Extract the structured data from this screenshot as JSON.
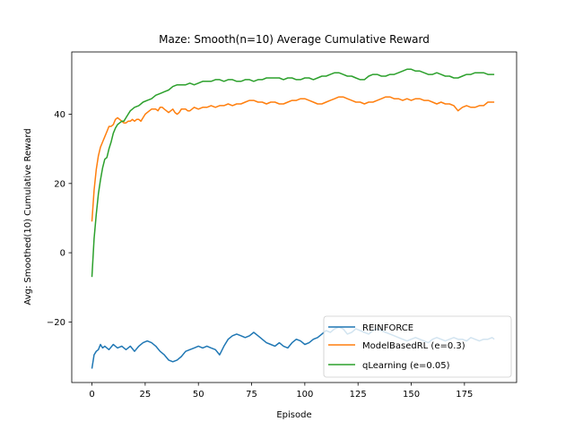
{
  "chart_data": {
    "type": "line",
    "title": "Maze: Smooth(n=10) Average Cumulative Reward",
    "xlabel": "Episode",
    "ylabel": "Avg: Smoothed(10) Cumulative Reward",
    "xlim": [
      -9.5,
      199.5
    ],
    "ylim": [
      -37.5,
      58
    ],
    "xticks": [
      0,
      25,
      50,
      75,
      100,
      125,
      150,
      175
    ],
    "yticks": [
      -20,
      0,
      20,
      40
    ],
    "yticklabels": [
      "−20",
      "0",
      "20",
      "40"
    ],
    "grid": false,
    "legend_position": "lower-right",
    "series": [
      {
        "name": "REINFORCE",
        "color": "#1f77b4",
        "points": [
          [
            0,
            -33.5
          ],
          [
            1,
            -29.5
          ],
          [
            2,
            -28.5
          ],
          [
            3,
            -28
          ],
          [
            4,
            -26.5
          ],
          [
            5,
            -27.5
          ],
          [
            6,
            -27
          ],
          [
            8,
            -28
          ],
          [
            10,
            -26.5
          ],
          [
            12,
            -27.5
          ],
          [
            14,
            -27
          ],
          [
            16,
            -28
          ],
          [
            18,
            -27
          ],
          [
            20,
            -28.5
          ],
          [
            22,
            -27
          ],
          [
            24,
            -26
          ],
          [
            26,
            -25.5
          ],
          [
            28,
            -26
          ],
          [
            30,
            -27
          ],
          [
            32,
            -28.5
          ],
          [
            34,
            -29.5
          ],
          [
            36,
            -31
          ],
          [
            38,
            -31.5
          ],
          [
            40,
            -31
          ],
          [
            42,
            -30
          ],
          [
            44,
            -28.5
          ],
          [
            46,
            -28
          ],
          [
            48,
            -27.5
          ],
          [
            50,
            -27
          ],
          [
            52,
            -27.5
          ],
          [
            54,
            -27
          ],
          [
            56,
            -27.5
          ],
          [
            58,
            -28
          ],
          [
            60,
            -29.5
          ],
          [
            62,
            -27
          ],
          [
            64,
            -25
          ],
          [
            66,
            -24
          ],
          [
            68,
            -23.5
          ],
          [
            70,
            -24
          ],
          [
            72,
            -24.5
          ],
          [
            74,
            -24
          ],
          [
            76,
            -23
          ],
          [
            78,
            -24
          ],
          [
            80,
            -25
          ],
          [
            82,
            -26
          ],
          [
            84,
            -26.5
          ],
          [
            86,
            -27
          ],
          [
            88,
            -26
          ],
          [
            90,
            -27
          ],
          [
            92,
            -27.5
          ],
          [
            94,
            -26
          ],
          [
            96,
            -25
          ],
          [
            98,
            -25.5
          ],
          [
            100,
            -26.5
          ],
          [
            102,
            -26
          ],
          [
            104,
            -25
          ],
          [
            106,
            -24.5
          ],
          [
            108,
            -23.5
          ],
          [
            110,
            -22.5
          ],
          [
            112,
            -23
          ],
          [
            114,
            -22
          ],
          [
            116,
            -21.5
          ],
          [
            118,
            -22
          ],
          [
            120,
            -23.5
          ],
          [
            122,
            -23
          ],
          [
            124,
            -22
          ],
          [
            126,
            -22.5
          ],
          [
            128,
            -23
          ],
          [
            130,
            -23.5
          ],
          [
            132,
            -22.5
          ],
          [
            134,
            -22
          ],
          [
            136,
            -22.5
          ],
          [
            138,
            -23
          ],
          [
            140,
            -23.5
          ],
          [
            142,
            -24
          ],
          [
            144,
            -24.5
          ],
          [
            146,
            -25
          ],
          [
            148,
            -25.5
          ],
          [
            150,
            -25
          ],
          [
            152,
            -24.5
          ],
          [
            154,
            -25
          ],
          [
            156,
            -25.5
          ],
          [
            158,
            -26
          ],
          [
            160,
            -25
          ],
          [
            162,
            -24.5
          ],
          [
            164,
            -25
          ],
          [
            166,
            -25.5
          ],
          [
            168,
            -25
          ],
          [
            170,
            -24.5
          ],
          [
            172,
            -25
          ],
          [
            174,
            -25
          ],
          [
            176,
            -25.5
          ],
          [
            178,
            -24.5
          ],
          [
            180,
            -25
          ],
          [
            182,
            -25.5
          ],
          [
            184,
            -25
          ],
          [
            186,
            -25
          ],
          [
            188,
            -24.5
          ],
          [
            189,
            -25
          ]
        ]
      },
      {
        "name": "ModelBasedRL (e=0.3)",
        "color": "#ff7f0e",
        "points": [
          [
            0,
            9
          ],
          [
            1,
            18
          ],
          [
            2,
            24
          ],
          [
            3,
            28
          ],
          [
            4,
            30.5
          ],
          [
            5,
            32
          ],
          [
            6,
            33.5
          ],
          [
            7,
            35
          ],
          [
            8,
            36.5
          ],
          [
            9,
            36.5
          ],
          [
            10,
            37
          ],
          [
            11,
            38.5
          ],
          [
            12,
            39
          ],
          [
            13,
            38.5
          ],
          [
            14,
            38
          ],
          [
            15,
            37.5
          ],
          [
            16,
            37.5
          ],
          [
            17,
            38
          ],
          [
            18,
            38
          ],
          [
            19,
            38.5
          ],
          [
            20,
            38
          ],
          [
            21,
            38.5
          ],
          [
            22,
            38.5
          ],
          [
            23,
            38
          ],
          [
            24,
            39
          ],
          [
            25,
            40
          ],
          [
            26,
            40.5
          ],
          [
            27,
            41
          ],
          [
            28,
            41.5
          ],
          [
            29,
            41.5
          ],
          [
            30,
            41.5
          ],
          [
            31,
            41
          ],
          [
            32,
            42
          ],
          [
            33,
            42
          ],
          [
            34,
            41.5
          ],
          [
            35,
            41
          ],
          [
            36,
            40.5
          ],
          [
            37,
            41
          ],
          [
            38,
            41.5
          ],
          [
            39,
            40.5
          ],
          [
            40,
            40
          ],
          [
            41,
            40.5
          ],
          [
            42,
            41.5
          ],
          [
            43,
            41.5
          ],
          [
            44,
            41.5
          ],
          [
            45,
            41
          ],
          [
            46,
            41
          ],
          [
            47,
            41.5
          ],
          [
            48,
            42
          ],
          [
            50,
            41.5
          ],
          [
            52,
            42
          ],
          [
            54,
            42
          ],
          [
            56,
            42.5
          ],
          [
            58,
            42
          ],
          [
            60,
            42.5
          ],
          [
            62,
            42.5
          ],
          [
            64,
            43
          ],
          [
            66,
            42.5
          ],
          [
            68,
            43
          ],
          [
            70,
            43
          ],
          [
            72,
            43.5
          ],
          [
            74,
            44
          ],
          [
            76,
            44
          ],
          [
            78,
            43.5
          ],
          [
            80,
            43.5
          ],
          [
            82,
            43
          ],
          [
            84,
            43.5
          ],
          [
            86,
            43.5
          ],
          [
            88,
            43
          ],
          [
            90,
            43
          ],
          [
            92,
            43.5
          ],
          [
            94,
            44
          ],
          [
            96,
            44
          ],
          [
            98,
            44.5
          ],
          [
            100,
            44.5
          ],
          [
            102,
            44
          ],
          [
            104,
            43.5
          ],
          [
            106,
            43
          ],
          [
            108,
            43
          ],
          [
            110,
            43.5
          ],
          [
            112,
            44
          ],
          [
            114,
            44.5
          ],
          [
            116,
            45
          ],
          [
            118,
            45
          ],
          [
            120,
            44.5
          ],
          [
            122,
            44
          ],
          [
            124,
            43.5
          ],
          [
            126,
            43.5
          ],
          [
            128,
            43
          ],
          [
            130,
            43.5
          ],
          [
            132,
            43.5
          ],
          [
            134,
            44
          ],
          [
            136,
            44.5
          ],
          [
            138,
            45
          ],
          [
            140,
            45
          ],
          [
            142,
            44.5
          ],
          [
            144,
            44.5
          ],
          [
            146,
            44
          ],
          [
            148,
            44.5
          ],
          [
            150,
            44
          ],
          [
            152,
            44.5
          ],
          [
            154,
            44.5
          ],
          [
            156,
            44
          ],
          [
            158,
            44
          ],
          [
            160,
            43.5
          ],
          [
            162,
            43
          ],
          [
            164,
            43.5
          ],
          [
            166,
            43
          ],
          [
            168,
            43
          ],
          [
            170,
            42.5
          ],
          [
            172,
            41
          ],
          [
            174,
            42
          ],
          [
            176,
            42.5
          ],
          [
            178,
            42
          ],
          [
            180,
            42
          ],
          [
            182,
            42.5
          ],
          [
            184,
            42.5
          ],
          [
            186,
            43.5
          ],
          [
            188,
            43.5
          ],
          [
            189,
            43.5
          ]
        ]
      },
      {
        "name": "qLearning (e=0.05)",
        "color": "#2ca02c",
        "points": [
          [
            0,
            -7
          ],
          [
            1,
            4
          ],
          [
            2,
            11
          ],
          [
            3,
            17
          ],
          [
            4,
            21
          ],
          [
            5,
            24.5
          ],
          [
            6,
            27
          ],
          [
            7,
            27.5
          ],
          [
            8,
            30
          ],
          [
            9,
            32
          ],
          [
            10,
            34.5
          ],
          [
            11,
            36
          ],
          [
            12,
            37
          ],
          [
            13,
            37.5
          ],
          [
            14,
            38
          ],
          [
            15,
            38
          ],
          [
            16,
            39
          ],
          [
            17,
            40
          ],
          [
            18,
            41
          ],
          [
            19,
            41.5
          ],
          [
            20,
            42
          ],
          [
            22,
            42.5
          ],
          [
            24,
            43.5
          ],
          [
            26,
            44
          ],
          [
            28,
            44.5
          ],
          [
            30,
            45.5
          ],
          [
            32,
            46
          ],
          [
            34,
            46.5
          ],
          [
            36,
            47
          ],
          [
            38,
            48
          ],
          [
            40,
            48.5
          ],
          [
            42,
            48.5
          ],
          [
            44,
            48.5
          ],
          [
            46,
            49
          ],
          [
            48,
            48.5
          ],
          [
            50,
            49
          ],
          [
            52,
            49.5
          ],
          [
            54,
            49.5
          ],
          [
            56,
            49.5
          ],
          [
            58,
            50
          ],
          [
            60,
            50
          ],
          [
            62,
            49.5
          ],
          [
            64,
            50
          ],
          [
            66,
            50
          ],
          [
            68,
            49.5
          ],
          [
            70,
            49.5
          ],
          [
            72,
            50
          ],
          [
            74,
            50
          ],
          [
            76,
            49.5
          ],
          [
            78,
            50
          ],
          [
            80,
            50
          ],
          [
            82,
            50.5
          ],
          [
            84,
            50.5
          ],
          [
            86,
            50.5
          ],
          [
            88,
            50.5
          ],
          [
            90,
            50
          ],
          [
            92,
            50.5
          ],
          [
            94,
            50.5
          ],
          [
            96,
            50
          ],
          [
            98,
            50
          ],
          [
            100,
            50.5
          ],
          [
            102,
            50.5
          ],
          [
            104,
            50
          ],
          [
            106,
            50.5
          ],
          [
            108,
            51
          ],
          [
            110,
            51
          ],
          [
            112,
            51.5
          ],
          [
            114,
            52
          ],
          [
            116,
            52
          ],
          [
            118,
            51.5
          ],
          [
            120,
            51
          ],
          [
            122,
            51
          ],
          [
            124,
            50.5
          ],
          [
            126,
            50
          ],
          [
            128,
            50
          ],
          [
            130,
            51
          ],
          [
            132,
            51.5
          ],
          [
            134,
            51.5
          ],
          [
            136,
            51
          ],
          [
            138,
            51
          ],
          [
            140,
            51.5
          ],
          [
            142,
            51.5
          ],
          [
            144,
            52
          ],
          [
            146,
            52.5
          ],
          [
            148,
            53
          ],
          [
            150,
            53
          ],
          [
            152,
            52.5
          ],
          [
            154,
            52.5
          ],
          [
            156,
            52
          ],
          [
            158,
            51.5
          ],
          [
            160,
            51.5
          ],
          [
            162,
            52
          ],
          [
            164,
            51.5
          ],
          [
            166,
            51
          ],
          [
            168,
            51
          ],
          [
            170,
            50.5
          ],
          [
            172,
            50.5
          ],
          [
            174,
            51
          ],
          [
            176,
            51.5
          ],
          [
            178,
            51.5
          ],
          [
            180,
            52
          ],
          [
            182,
            52
          ],
          [
            184,
            52
          ],
          [
            186,
            51.5
          ],
          [
            188,
            51.5
          ],
          [
            189,
            51.5
          ]
        ]
      }
    ]
  }
}
